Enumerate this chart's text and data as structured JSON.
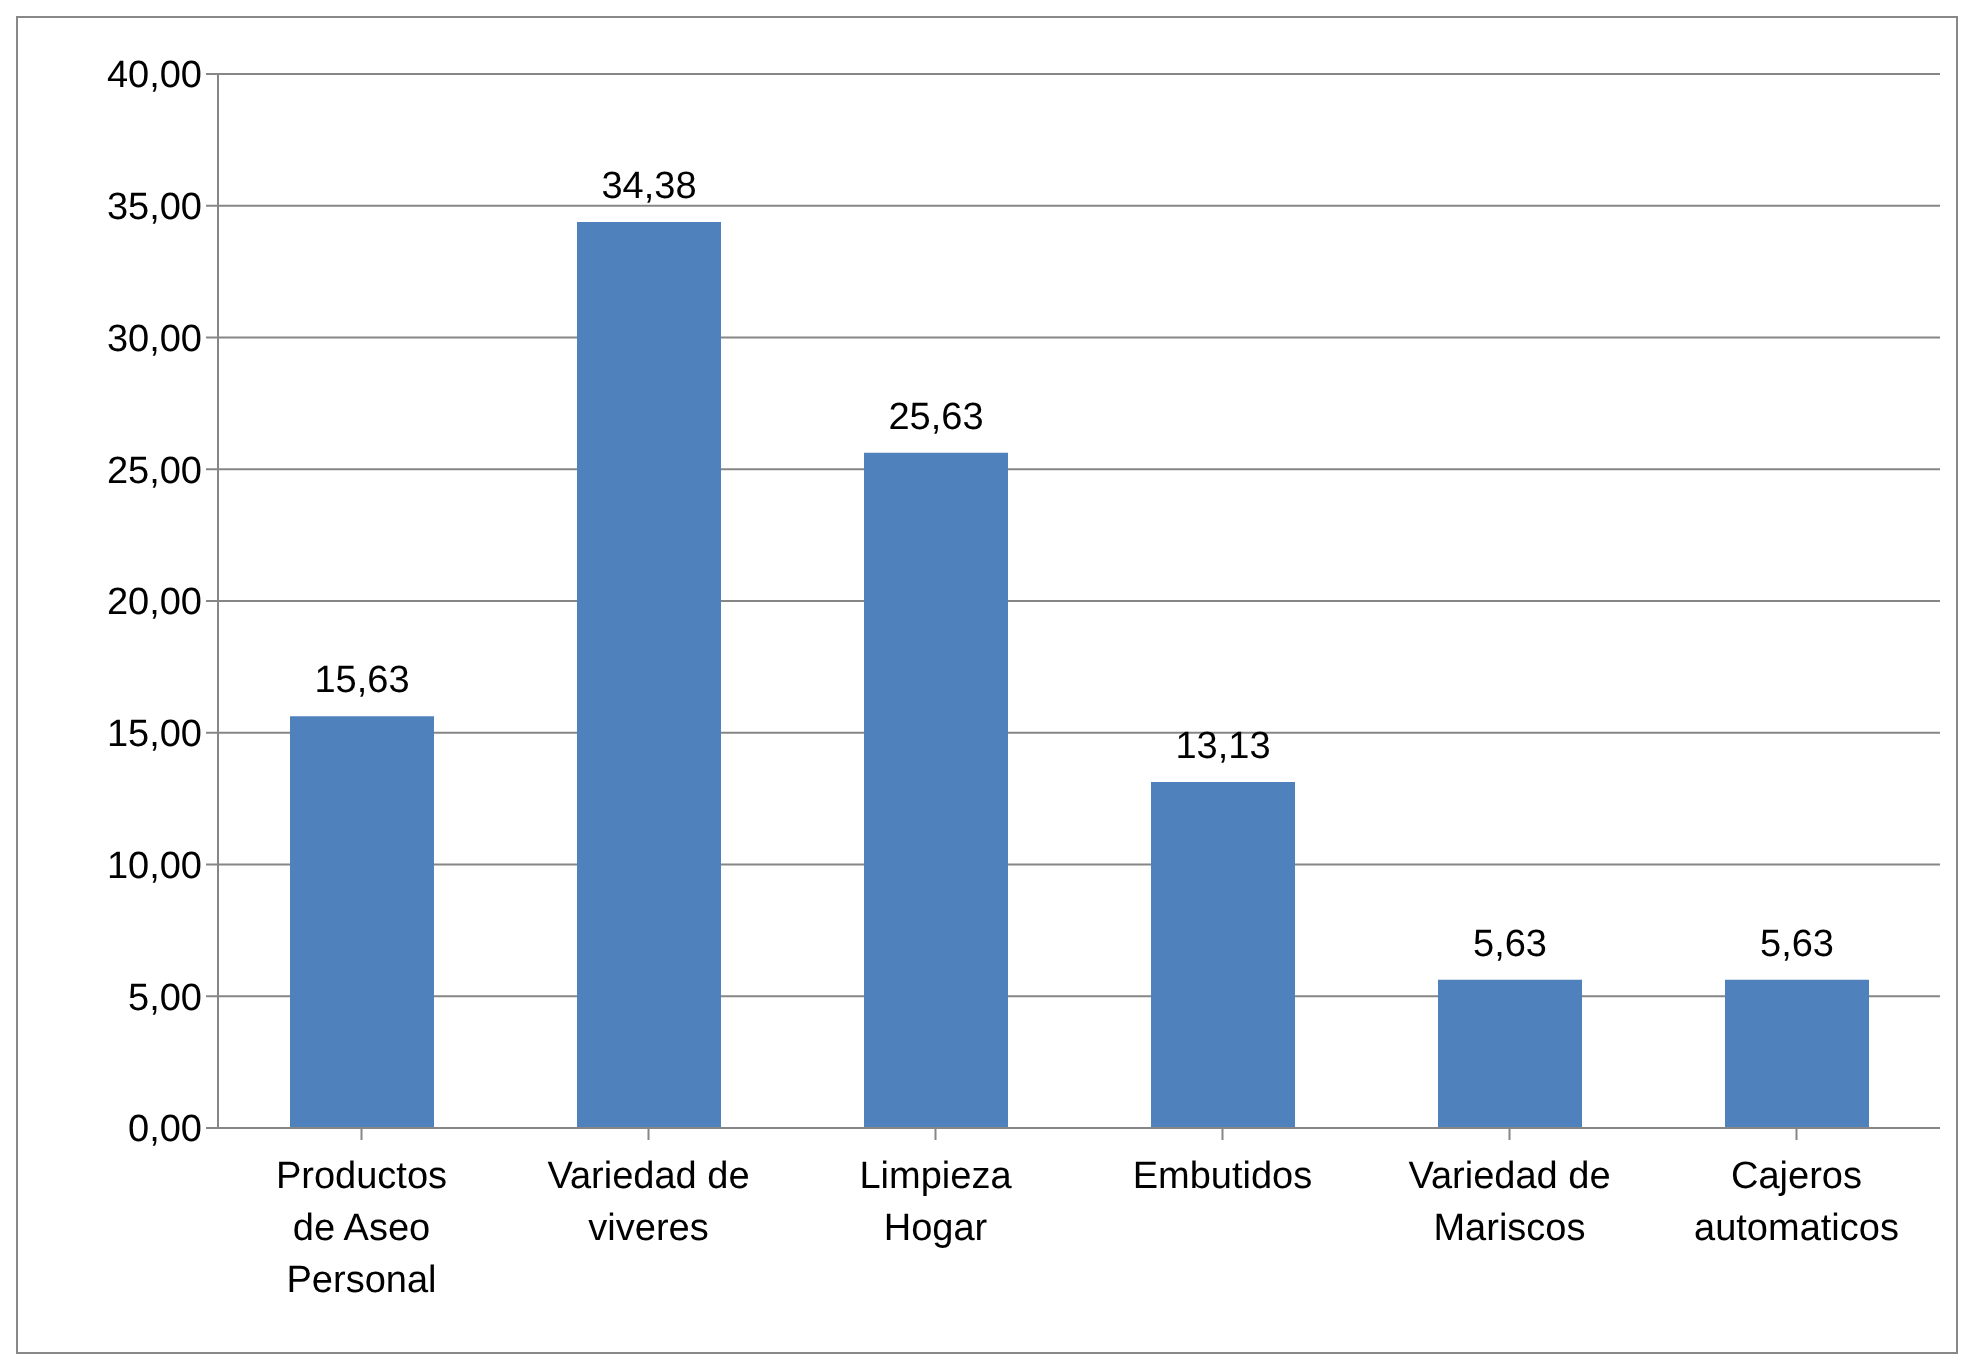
{
  "chart_data": {
    "type": "bar",
    "categories": [
      "Productos de Aseo Personal",
      "Variedad de viveres",
      "Limpieza Hogar",
      "Embutidos",
      "Variedad de Mariscos",
      "Cajeros automaticos"
    ],
    "values": [
      15.63,
      34.38,
      25.63,
      13.13,
      5.63,
      5.63
    ],
    "color": "#4f81bd",
    "ylim": [
      0,
      40
    ],
    "yticks": [
      {
        "value": 0,
        "label": "0,00"
      },
      {
        "value": 5,
        "label": "5,00"
      },
      {
        "value": 10,
        "label": "10,00"
      },
      {
        "value": 15,
        "label": "15,00"
      },
      {
        "value": 20,
        "label": "20,00"
      },
      {
        "value": 25,
        "label": "25,00"
      },
      {
        "value": 30,
        "label": "30,00"
      },
      {
        "value": 35,
        "label": "35,00"
      },
      {
        "value": 40,
        "label": "40,00"
      }
    ],
    "value_labels": [
      "15,63",
      "34,38",
      "25,63",
      "13,13",
      "5,63",
      "5,63"
    ],
    "grid": "y",
    "legend": false
  }
}
